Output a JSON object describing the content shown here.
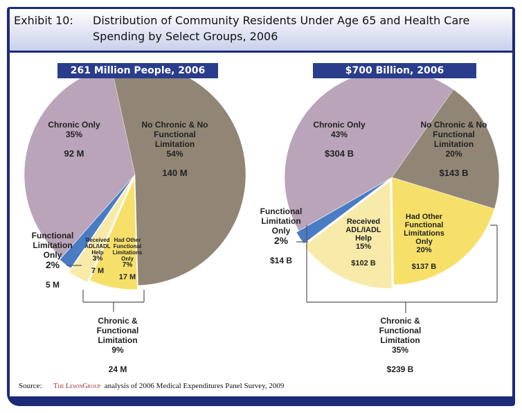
{
  "title": {
    "exhibit": "Exhibit 10:",
    "line1": "Distribution of Community Residents Under Age 65 and Health Care",
    "line2": "Spending by Select Groups, 2006"
  },
  "source": {
    "label": "Source:",
    "logo": "The LewinGroup",
    "text": "analysis of 2006 Medical Expenditures Panel Survey, 2009"
  },
  "chart_data": [
    {
      "type": "pie",
      "title": "261 Million People, 2006",
      "slices": [
        {
          "label": "No Chronic & No Functional Limitation",
          "percent": 54,
          "value": "140 M",
          "color": "#918675"
        },
        {
          "label": "Had Other Functional Limitations Only",
          "percent": 7,
          "value": "17 M",
          "color": "#f7e06a"
        },
        {
          "label": "Received ADL/IADL Help",
          "percent": 3,
          "value": "7 M",
          "color": "#f8eaa8"
        },
        {
          "label": "Functional Limitation Only",
          "percent": 2,
          "value": "5 M",
          "color": "#4a7cc4"
        },
        {
          "label": "Chronic Only",
          "percent": 35,
          "value": "92 M",
          "color": "#b9a4b9"
        }
      ],
      "group": {
        "label": "Chronic & Functional Limitation",
        "percent": 9,
        "value": "24 M"
      }
    },
    {
      "type": "pie",
      "title": "$700 Billion, 2006",
      "slices": [
        {
          "label": "No Chronic & No Functional Limitation",
          "percent": 20,
          "value": "$143 B",
          "color": "#918675"
        },
        {
          "label": "Had Other Functional Limitations Only",
          "percent": 20,
          "value": "$137 B",
          "color": "#f7e06a"
        },
        {
          "label": "Received ADL/IADL Help",
          "percent": 15,
          "value": "$102 B",
          "color": "#f8eaa8"
        },
        {
          "label": "Functional Limitation Only",
          "percent": 2,
          "value": "$14 B",
          "color": "#4a7cc4"
        },
        {
          "label": "Chronic Only",
          "percent": 43,
          "value": "$304 B",
          "color": "#b9a4b9"
        }
      ],
      "group": {
        "label": "Chronic & Functional Limitation",
        "percent": 35,
        "value": "$239 B"
      }
    }
  ]
}
